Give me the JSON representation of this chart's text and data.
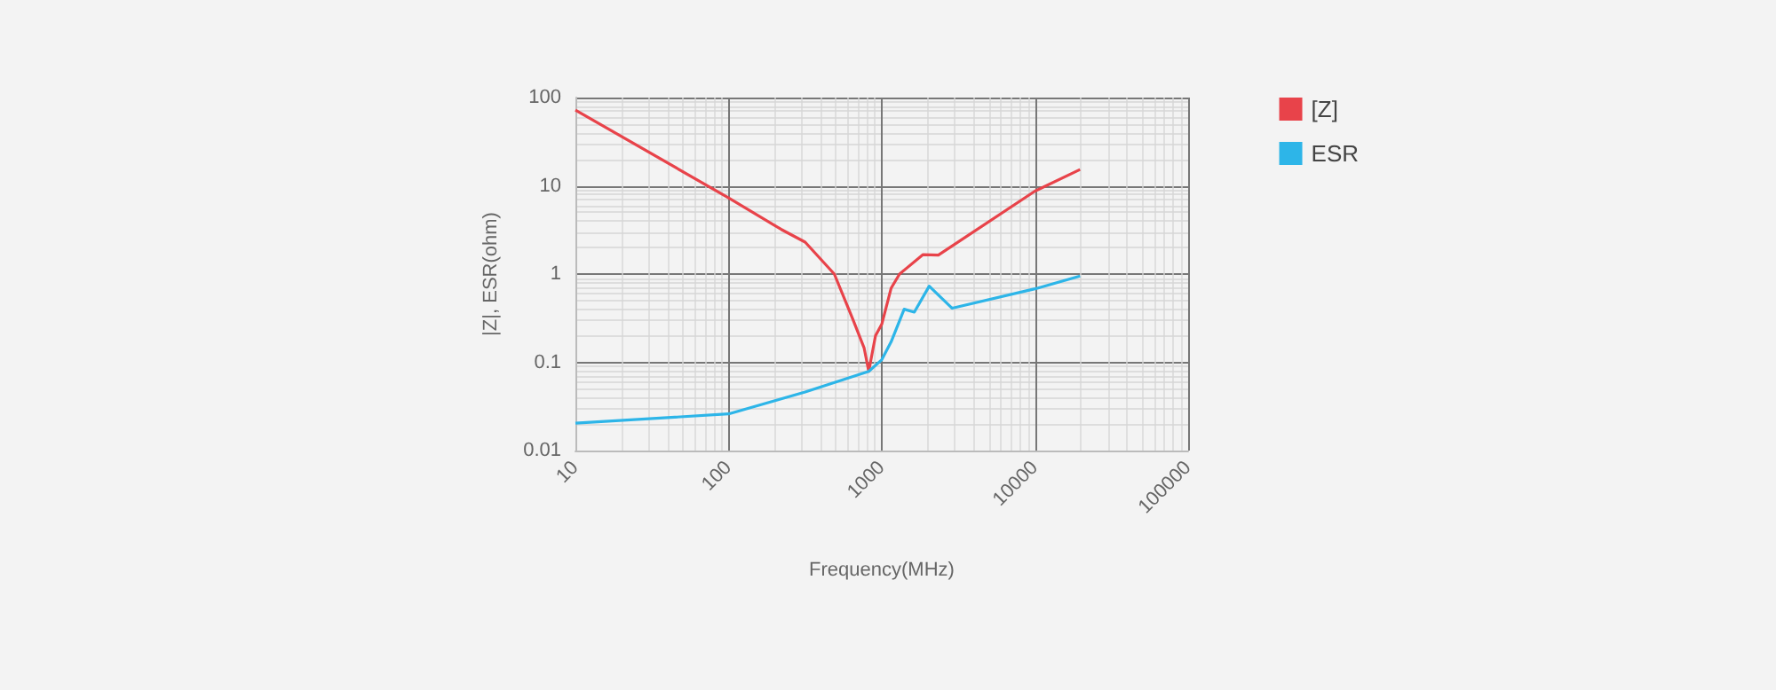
{
  "chart_data": {
    "type": "line",
    "xlabel": "Frequency(MHz)",
    "ylabel": "|Z|, ESR(ohm)",
    "log": "xy",
    "grid": true,
    "legend": "top right",
    "marker": "none",
    "line_style": "solid",
    "xlim": [
      10,
      100000
    ],
    "xticks": [
      10,
      100,
      1000,
      10000,
      100000
    ],
    "ylim": [
      0.01,
      100
    ],
    "yticks": [
      0.01,
      0.1,
      1,
      10,
      100
    ],
    "series": [
      {
        "name": "[Z]",
        "color": "#e8434a",
        "x": [
          10,
          100,
          221,
          316,
          490,
          646,
          767,
          822,
          910,
          1000,
          1150,
          1306,
          1860,
          2340,
          10000,
          19700
        ],
        "values": [
          72,
          7.3,
          3.2,
          2.3,
          1.0,
          0.31,
          0.145,
          0.079,
          0.2,
          0.27,
          0.69,
          1.0,
          1.66,
          1.64,
          8.7,
          15.3
        ]
      },
      {
        "name": "ESR",
        "color": "#2db5e8",
        "x": [
          10,
          100,
          316,
          822,
          1000,
          1150,
          1400,
          1630,
          2040,
          2880,
          10000,
          19700
        ],
        "values": [
          0.0204,
          0.026,
          0.046,
          0.079,
          0.107,
          0.17,
          0.4,
          0.37,
          0.73,
          0.41,
          0.68,
          0.95
        ]
      }
    ]
  }
}
